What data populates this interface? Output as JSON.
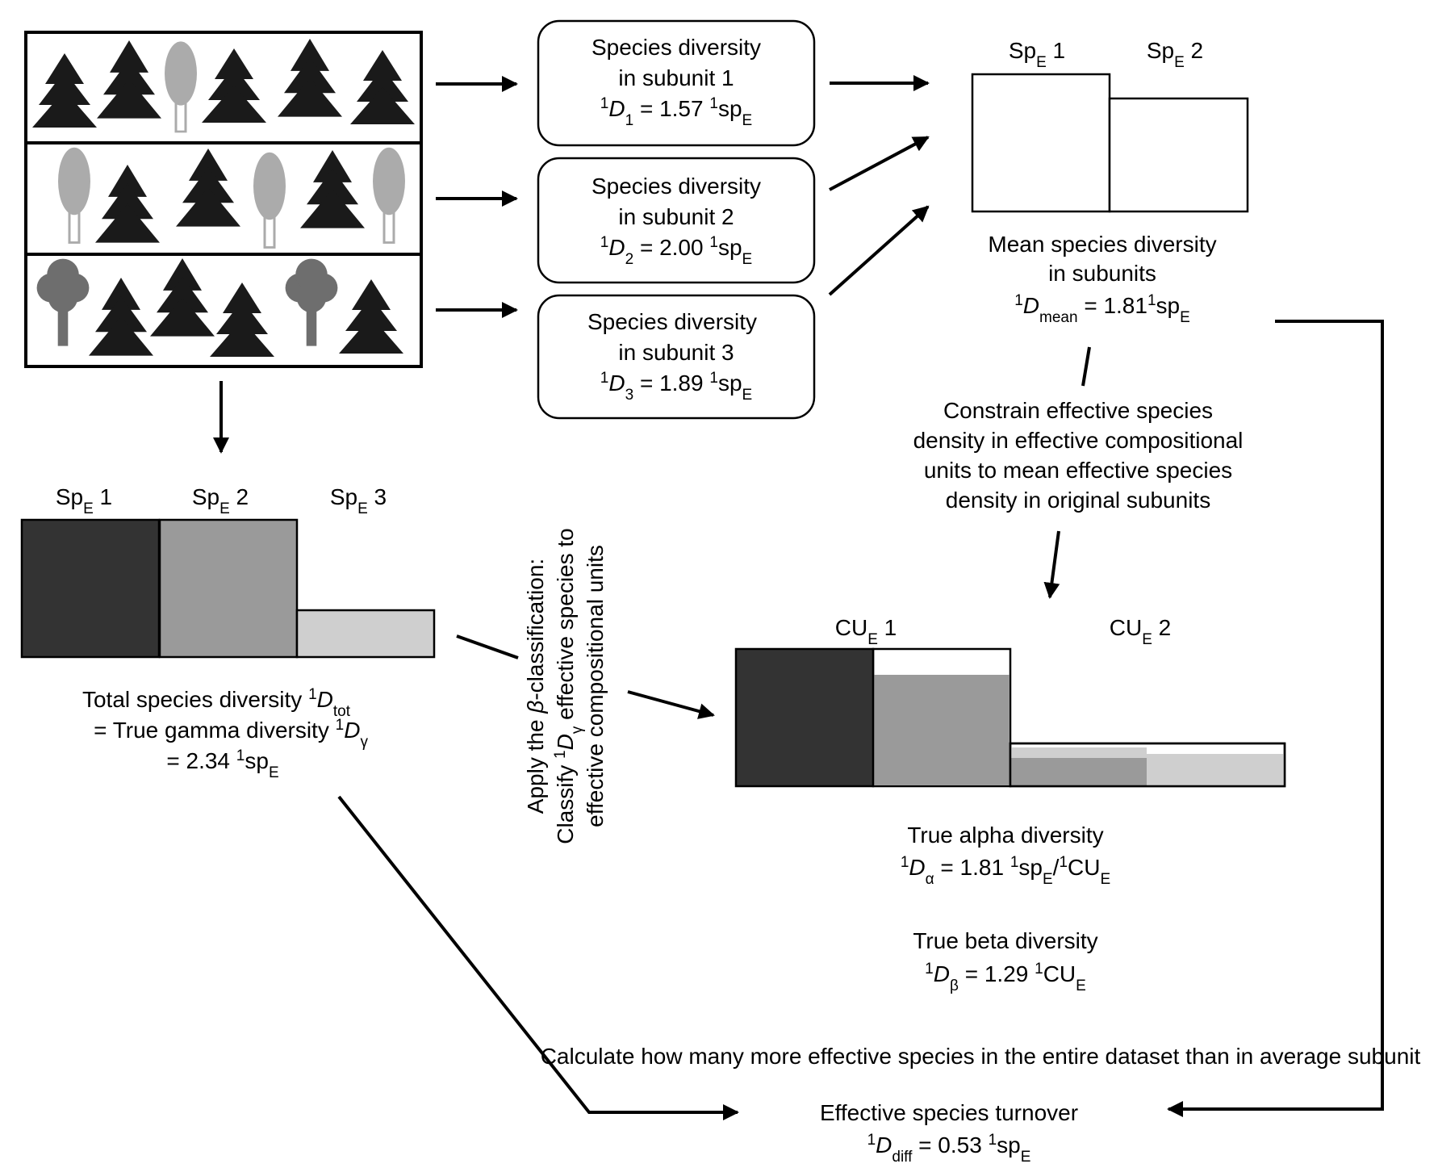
{
  "subunits": [
    {
      "title": "Species diversity",
      "subtitle": "in subunit 1",
      "sym_sup": "1",
      "sym": "D",
      "sym_sub": "1",
      "eq": " = 1.57 ",
      "unit_sup": "1",
      "unit": "sp",
      "unit_sub": "E"
    },
    {
      "title": "Species diversity",
      "subtitle": "in subunit 2",
      "sym_sup": "1",
      "sym": "D",
      "sym_sub": "2",
      "eq": " = 2.00 ",
      "unit_sup": "1",
      "unit": "sp",
      "unit_sub": "E"
    },
    {
      "title": "Species diversity",
      "subtitle": "in subunit 3",
      "sym_sup": "1",
      "sym": "D",
      "sym_sub": "3",
      "eq": " = 1.89 ",
      "unit_sup": "1",
      "unit": "sp",
      "unit_sub": "E"
    }
  ],
  "mean_panel": {
    "sp1_base": "Sp",
    "sp1_sub": "E",
    "sp1_num": " 1",
    "sp2_base": "Sp",
    "sp2_sub": "E",
    "sp2_num": " 2",
    "line1": "Mean species diversity",
    "line2": "in subunits",
    "sym_sup": "1",
    "sym": "D",
    "sym_sub": "mean",
    "eq": " = 1.81",
    "unit_sup": "1",
    "unit": "sp",
    "unit_sub": "E"
  },
  "constrain_text": [
    "Constrain effective species",
    "density in effective compositional",
    "units to mean effective species",
    "density in original subunits"
  ],
  "total_panel": {
    "sp1_base": "Sp",
    "sp1_sub": "E",
    "sp1_num": " 1",
    "sp2_base": "Sp",
    "sp2_sub": "E",
    "sp2_num": " 2",
    "sp3_base": "Sp",
    "sp3_sub": "E",
    "sp3_num": " 3",
    "line1_text": "Total species diversity ",
    "line1_sup": "1",
    "line1_sym": "D",
    "line1_sub": "tot",
    "line2_text": "= True gamma diversity ",
    "line2_sup": "1",
    "line2_sym": "D",
    "line2_sub": "γ",
    "line3_text": "= 2.34 ",
    "line3_sup": "1",
    "line3_unit": "sp",
    "line3_sub": "E"
  },
  "classification": {
    "line1_a": "Apply the ",
    "line1_beta": "β",
    "line1_b": "-classification:",
    "line2_a": "Classify ",
    "line2_sup": "1",
    "line2_sym": "D",
    "line2_sub": "γ",
    "line2_b": " effective species to",
    "line3": "effective compositional units"
  },
  "cu_panel": {
    "cu1_base": "CU",
    "cu1_sub": "E",
    "cu1_num": " 1",
    "cu2_base": "CU",
    "cu2_sub": "E",
    "cu2_num": " 2"
  },
  "alpha": {
    "title": "True alpha diversity",
    "sym_sup": "1",
    "sym": "D",
    "sym_sub": "α",
    "eq": " = 1.81 ",
    "u1_sup": "1",
    "u1": "sp",
    "u1_sub": "E",
    "slash": "/",
    "u2_sup": "1",
    "u2": "CU",
    "u2_sub": "E"
  },
  "beta": {
    "title": "True beta diversity",
    "sym_sup": "1",
    "sym": "D",
    "sym_sub": "β",
    "eq": " = 1.29 ",
    "u_sup": "1",
    "u": "CU",
    "u_sub": "E"
  },
  "calculate_text": "Calculate how many more effective species in the entire dataset than in average subunit",
  "turnover": {
    "title": "Effective species turnover",
    "sym_sup": "1",
    "sym": "D",
    "sym_sub": "diff",
    "eq": " = 0.53 ",
    "u_sup": "1",
    "u": "sp",
    "u_sub": "E"
  },
  "colors": {
    "dark": "#333333",
    "mid": "#9a9a9a",
    "light": "#cfcfcf",
    "conifer": "#1a1a1a",
    "deciduous": "#ababab",
    "bush": "#6e6e6e"
  },
  "icons": {
    "conifer": "conifer-tree-icon",
    "deciduous": "deciduous-tree-icon",
    "broadleaf": "broadleaf-tree-icon"
  }
}
